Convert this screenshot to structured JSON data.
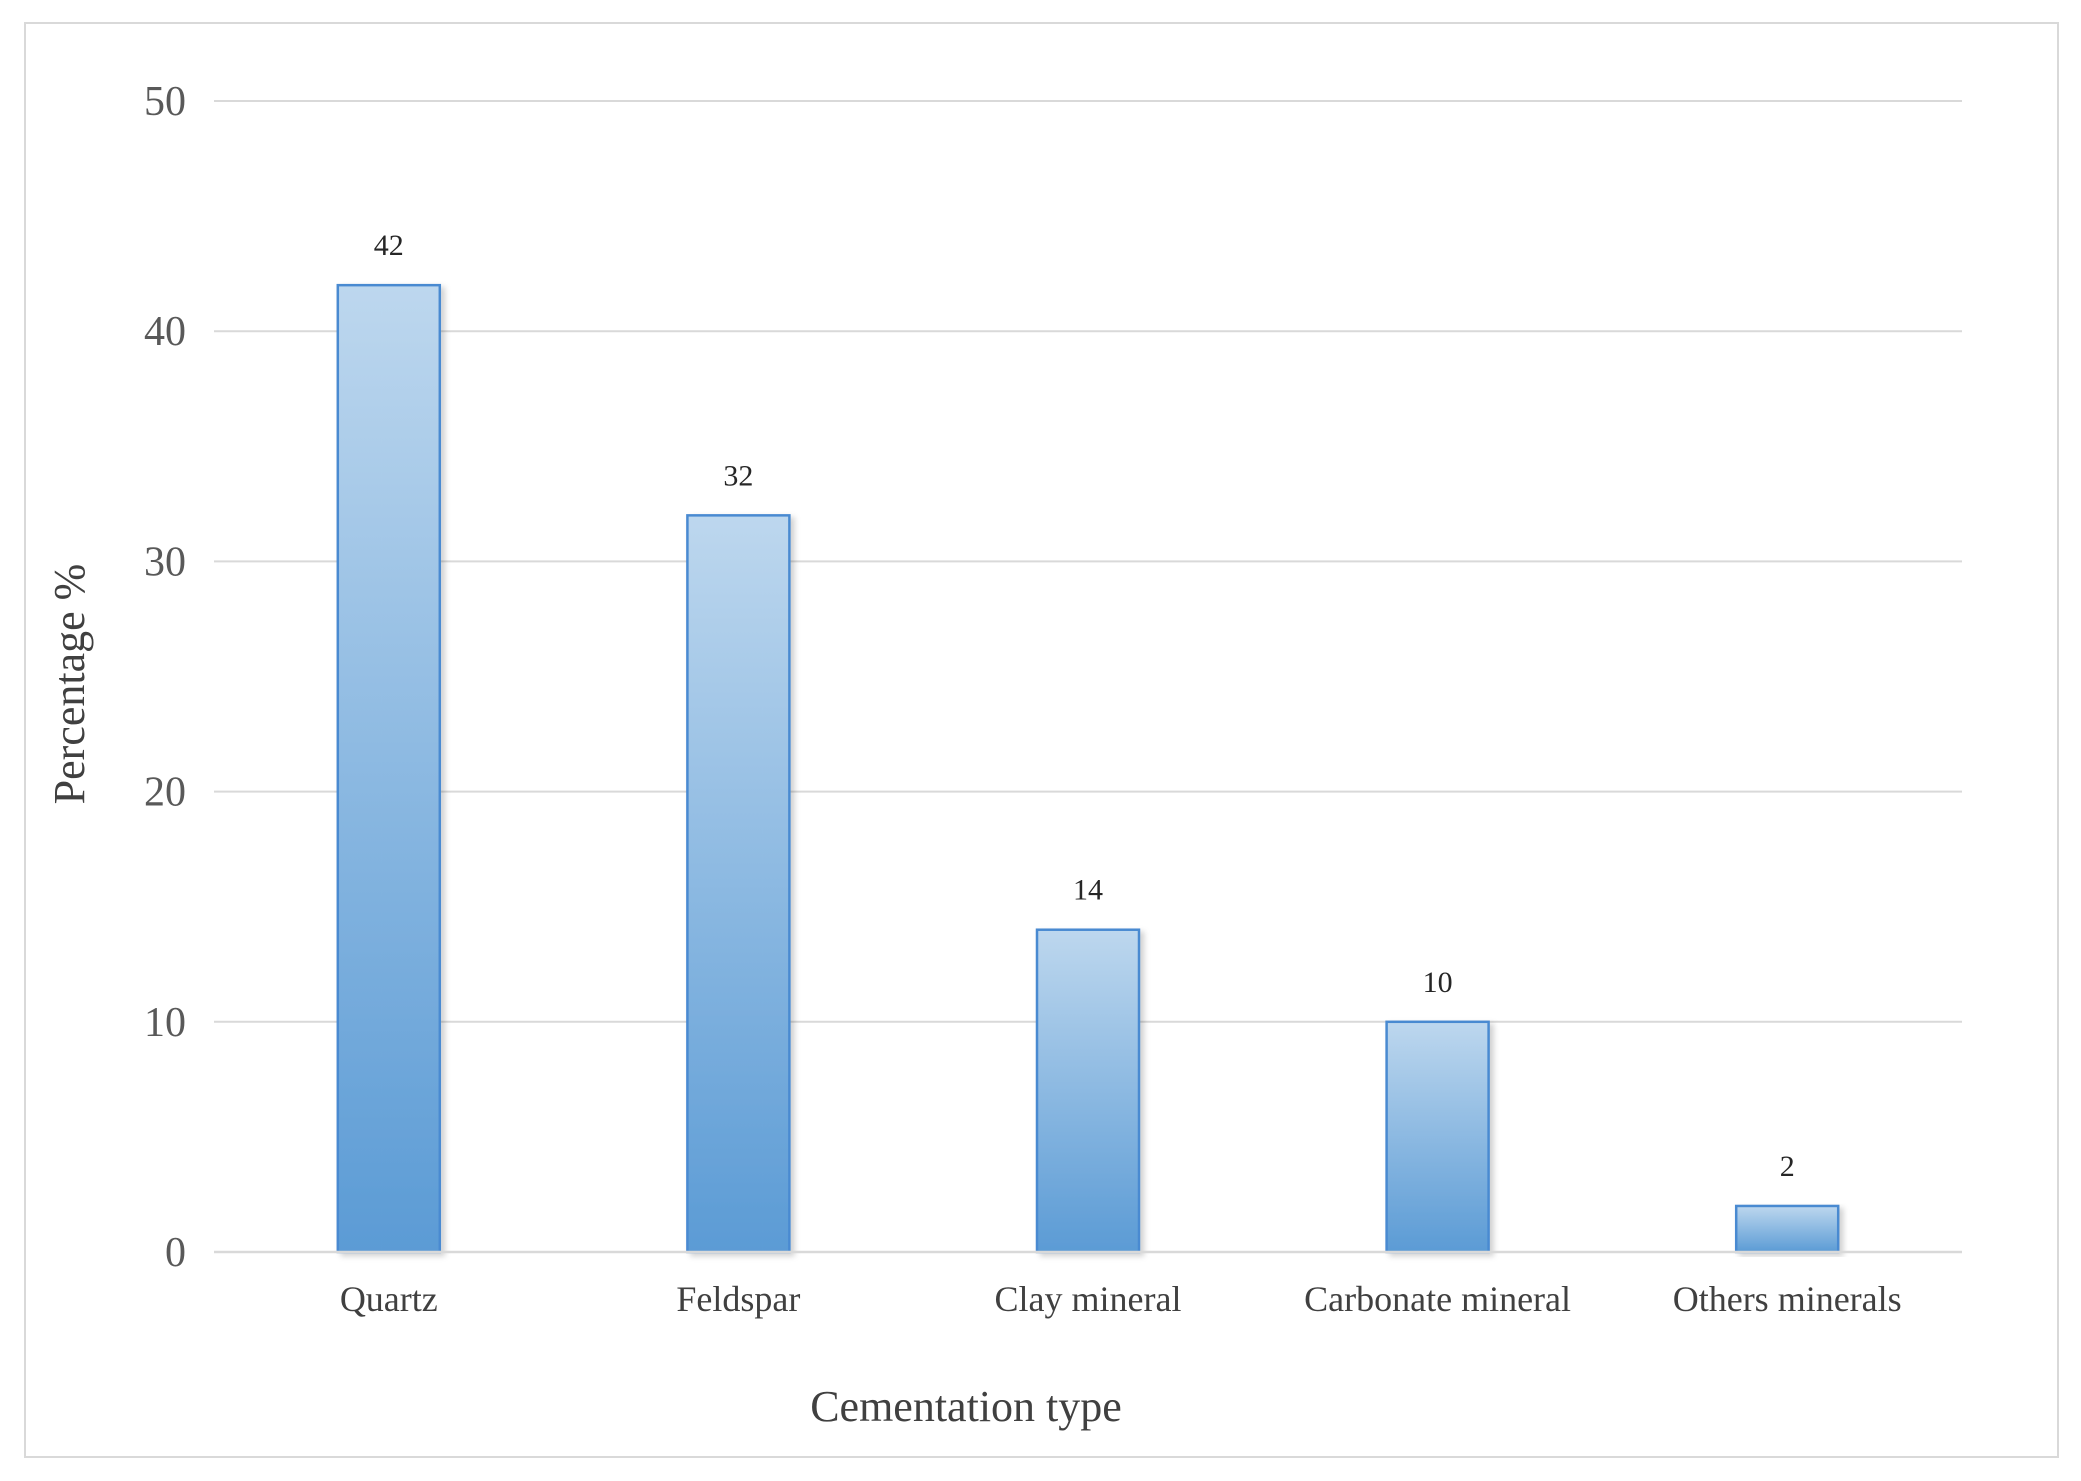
{
  "chart_data": {
    "type": "bar",
    "categories": [
      "Quartz",
      "Feldspar",
      "Clay mineral",
      "Carbonate mineral",
      "Others minerals"
    ],
    "values": [
      42,
      32,
      14,
      10,
      2
    ],
    "data_labels": [
      "42",
      "32",
      "14",
      "10",
      "2"
    ],
    "title": "",
    "xlabel": "Cementation type",
    "ylabel": "Percentage %",
    "ylim": [
      0,
      50
    ],
    "yticks": [
      0,
      10,
      20,
      30,
      40,
      50
    ],
    "ytick_labels": [
      "0",
      "10",
      "20",
      "30",
      "40",
      "50"
    ],
    "grid": true,
    "legend": "none"
  },
  "colors": {
    "bar_top": "#bdd7ee",
    "bar_bottom": "#5b9bd5",
    "bar_border": "#4a8ad1",
    "gridline": "#d9d9d9",
    "frame": "#d9d9d9"
  }
}
